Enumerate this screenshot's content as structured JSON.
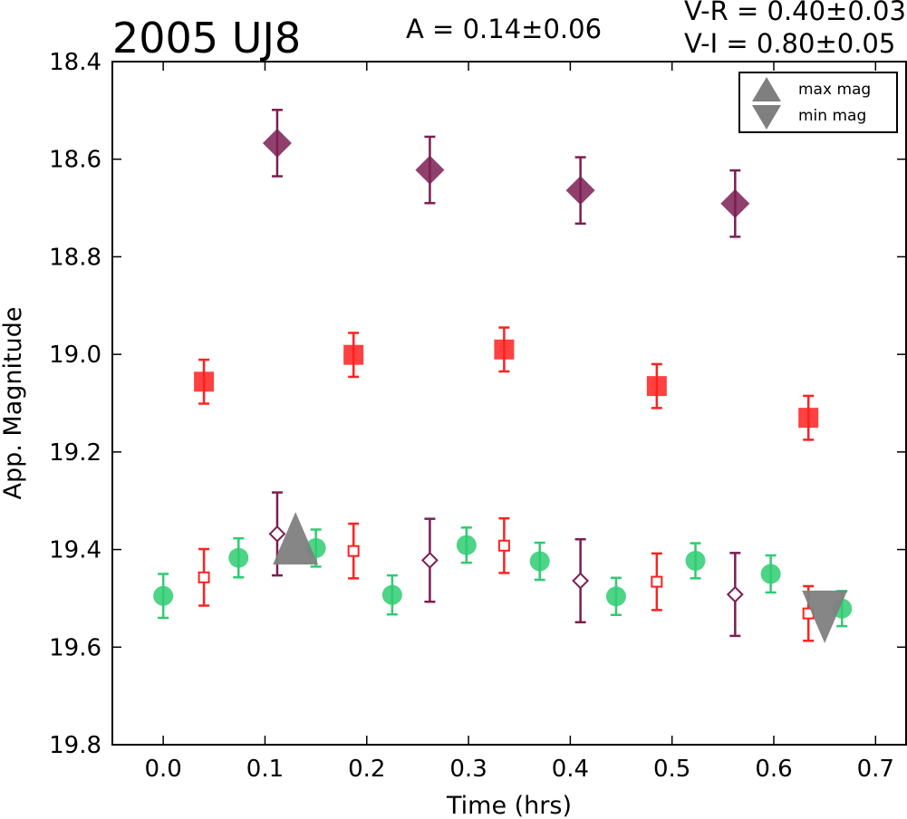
{
  "chart_data": {
    "type": "scatter",
    "title": "2005 UJ8",
    "amplitude_text": "A  = 0.14±0.06",
    "color_index_text": [
      "V-R = 0.40±0.03",
      "V-I  = 0.80±0.05"
    ],
    "xlabel": "Time (hrs)",
    "ylabel": "App. Magnitude",
    "xlim": [
      -0.05,
      0.73
    ],
    "ylim": [
      19.8,
      18.4
    ],
    "y_inverted": true,
    "xticks": [
      "0.0",
      "0.1",
      "0.2",
      "0.3",
      "0.4",
      "0.5",
      "0.6",
      "0.7"
    ],
    "yticks": [
      "18.4",
      "18.6",
      "18.8",
      "19.0",
      "19.2",
      "19.4",
      "19.6",
      "19.8"
    ],
    "legend": {
      "placement": "top-right",
      "entries": [
        {
          "label": "max mag",
          "marker": "triangle-up",
          "color": "#7f7f7f"
        },
        {
          "label": "min mag",
          "marker": "triangle-down",
          "color": "#7f7f7f"
        }
      ]
    },
    "series": [
      {
        "marker": "circle-filled",
        "color": "#2ecc71",
        "points": [
          {
            "x": 0.0,
            "y": 19.495,
            "err": 0.045
          },
          {
            "x": 0.074,
            "y": 19.417,
            "err": 0.04
          },
          {
            "x": 0.15,
            "y": 19.397,
            "err": 0.038
          },
          {
            "x": 0.225,
            "y": 19.493,
            "err": 0.04
          },
          {
            "x": 0.298,
            "y": 19.391,
            "err": 0.036
          },
          {
            "x": 0.37,
            "y": 19.424,
            "err": 0.038
          },
          {
            "x": 0.445,
            "y": 19.496,
            "err": 0.038
          },
          {
            "x": 0.523,
            "y": 19.423,
            "err": 0.036
          },
          {
            "x": 0.597,
            "y": 19.45,
            "err": 0.038
          },
          {
            "x": 0.667,
            "y": 19.521,
            "err": 0.036
          }
        ]
      },
      {
        "marker": "square-open",
        "color": "#ff2020",
        "points": [
          {
            "x": 0.04,
            "y": 19.457,
            "err": 0.058
          },
          {
            "x": 0.187,
            "y": 19.403,
            "err": 0.056
          },
          {
            "x": 0.335,
            "y": 19.392,
            "err": 0.056
          },
          {
            "x": 0.485,
            "y": 19.466,
            "err": 0.058
          },
          {
            "x": 0.634,
            "y": 19.531,
            "err": 0.056
          }
        ]
      },
      {
        "marker": "diamond-open",
        "color": "#7b1e52",
        "points": [
          {
            "x": 0.112,
            "y": 19.368,
            "err": 0.085
          },
          {
            "x": 0.262,
            "y": 19.422,
            "err": 0.085
          },
          {
            "x": 0.41,
            "y": 19.464,
            "err": 0.085
          },
          {
            "x": 0.562,
            "y": 19.492,
            "err": 0.085
          }
        ]
      },
      {
        "marker": "square-filled",
        "color": "#ff2020",
        "points": [
          {
            "x": 0.04,
            "y": 19.056,
            "err": 0.045
          },
          {
            "x": 0.187,
            "y": 19.001,
            "err": 0.045
          },
          {
            "x": 0.335,
            "y": 18.99,
            "err": 0.045
          },
          {
            "x": 0.485,
            "y": 19.065,
            "err": 0.045
          },
          {
            "x": 0.634,
            "y": 19.13,
            "err": 0.045
          }
        ]
      },
      {
        "marker": "diamond-filled",
        "color": "#7b1e52",
        "points": [
          {
            "x": 0.112,
            "y": 18.567,
            "err": 0.068
          },
          {
            "x": 0.262,
            "y": 18.622,
            "err": 0.068
          },
          {
            "x": 0.41,
            "y": 18.664,
            "err": 0.068
          },
          {
            "x": 0.562,
            "y": 18.691,
            "err": 0.068
          }
        ]
      }
    ],
    "extrema": [
      {
        "label": "max mag",
        "marker": "triangle-up",
        "x": 0.13,
        "y": 19.39,
        "color": "#7f7f7f"
      },
      {
        "label": "min mag",
        "marker": "triangle-down",
        "x": 0.65,
        "y": 19.525,
        "color": "#7f7f7f"
      }
    ]
  }
}
